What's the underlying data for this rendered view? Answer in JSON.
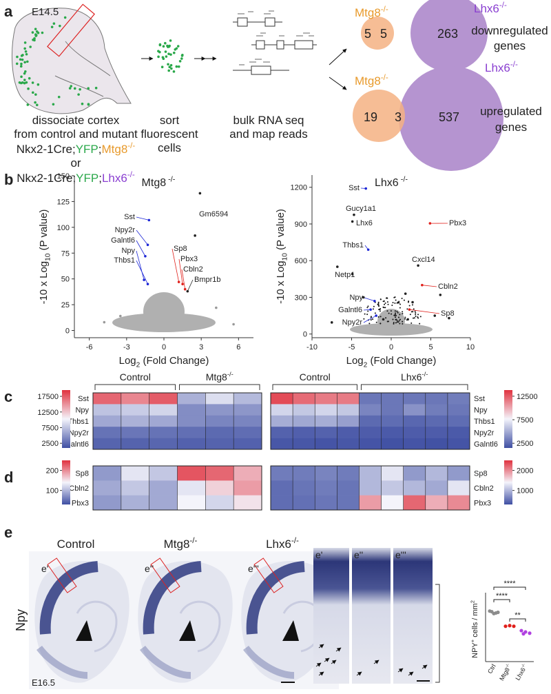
{
  "panel_labels": [
    "a",
    "b",
    "c",
    "d",
    "e"
  ],
  "panel_a": {
    "stage": "E14.5",
    "step1": [
      "dissociate cortex",
      "from control and mutant"
    ],
    "genotype1": [
      "Nkx2-1Cre;",
      "YFP",
      ";",
      "Mtg8",
      "-/-"
    ],
    "or": "or",
    "genotype2": [
      "Nkx2-1Cre;",
      "YFP",
      ";",
      "Lhx6",
      "-/-"
    ],
    "step2": [
      "sort",
      "fluorescent",
      "cells"
    ],
    "step3": [
      "bulk RNA seq",
      "and map reads"
    ],
    "venns": [
      {
        "left": "Mtg8",
        "left_sup": "-/-",
        "right": "Lhx6",
        "right_sup": "-/-",
        "only_left": 5,
        "overlap": 5,
        "only_right": 263,
        "caption": [
          "downregulated",
          "genes"
        ]
      },
      {
        "left": "Mtg8",
        "left_sup": "-/-",
        "right": "Lhx6",
        "right_sup": "-/-",
        "only_left": 19,
        "overlap": 3,
        "only_right": 537,
        "caption": [
          "upregulated",
          "genes"
        ]
      }
    ]
  },
  "panel_e": {
    "columns": [
      {
        "name": "Control"
      },
      {
        "name": "Mtg8",
        "sup": "-/-"
      },
      {
        "name": "Lhx6",
        "sup": "-/-"
      }
    ],
    "inset_labels": [
      "e'",
      "e''",
      "e'''"
    ],
    "zoom_labels": [
      "e'",
      "e''",
      "e'''"
    ],
    "marker": "Npy",
    "stage": "E16.5"
  },
  "chart_data": [
    {
      "type": "volcano",
      "title": "Mtg8",
      "title_sup": " -/-",
      "x_label": [
        "Log",
        "2",
        " (Fold Change)"
      ],
      "y_label": [
        "-10 x Log",
        "10",
        " (P value)"
      ],
      "xlim": [
        -7.2,
        7.2
      ],
      "xticks": [
        -6,
        -3,
        0,
        3,
        6
      ],
      "ylim": [
        -7,
        150
      ],
      "yticks": [
        0,
        25,
        50,
        75,
        100,
        125,
        150
      ],
      "x": [
        2.9,
        2.5,
        -1.2,
        -1.3,
        -1.5,
        -1.6,
        -1.3,
        1.2,
        1.5,
        1.7,
        1.9,
        -4.8,
        5.6,
        4.2,
        -3.5
      ],
      "values": [
        133,
        92,
        107,
        83,
        72,
        49,
        45,
        47,
        45,
        40,
        38,
        8,
        6,
        22,
        14
      ],
      "point_labels": [
        null,
        "Gm6594",
        "Sst",
        "Npy2r",
        "Galntl6",
        "Npy",
        "Thbs1",
        "Sp8",
        "Pbx3",
        "Cbln2",
        "Bmpr1b",
        null,
        null,
        null,
        null
      ],
      "point_colors": [
        "#222222",
        "#222222",
        "#1d27d6",
        "#1d27d6",
        "#1d27d6",
        "#1d27d6",
        "#1d27d6",
        "#e0201b",
        "#e0201b",
        "#e0201b",
        "#222222",
        "#999999",
        "#999999",
        "#999999",
        "#999999"
      ]
    },
    {
      "type": "volcano",
      "title": "Lhx6",
      "title_sup": " -/-",
      "x_label": [
        "Log",
        "2",
        " (Fold Change)"
      ],
      "y_label": [
        "-10 x Log",
        "10",
        " (P value)"
      ],
      "xlim": [
        -10,
        10
      ],
      "xticks": [
        -10,
        -5,
        0,
        5,
        10
      ],
      "ylim": [
        -30,
        1300
      ],
      "yticks": [
        0,
        300,
        600,
        900,
        1200
      ],
      "x": [
        -3.2,
        -4.7,
        -4.9,
        4.9,
        -2.9,
        3.4,
        -4.9,
        3.9,
        -2.1,
        2.3,
        -2.6,
        -1.9,
        -6.8,
        7.3,
        6.2,
        5.5,
        -7.5,
        -3.5,
        1.8,
        2.7,
        -1.0,
        2.1
      ],
      "values": [
        1190,
        975,
        920,
        905,
        690,
        560,
        490,
        400,
        270,
        200,
        200,
        150,
        550,
        130,
        320,
        150,
        95,
        300,
        330,
        260,
        120,
        120
      ],
      "point_labels": [
        "Sst",
        "Gucy1a1",
        "Lhx6",
        "Pbx3",
        "Thbs1",
        "Cxcl14",
        "Netp1",
        "Cbln2",
        "Npy",
        "Sp8",
        "Galntl6",
        "Npy2r",
        null,
        null,
        null,
        null,
        null,
        null,
        null,
        null,
        null,
        null
      ],
      "point_colors": [
        "#1d27d6",
        "#222222",
        "#222222",
        "#e0201b",
        "#1d27d6",
        "#222222",
        "#222222",
        "#e0201b",
        "#1d27d6",
        "#e0201b",
        "#1d27d6",
        "#1d27d6",
        "#222222",
        "#222222",
        "#222222",
        "#222222",
        "#222222",
        "#222222",
        "#222222",
        "#222222",
        "#222222",
        "#222222"
      ]
    },
    {
      "type": "heatmap",
      "rows": [
        "Sst",
        "Npy",
        "Thbs1",
        "Npy2r",
        "Galntl6"
      ],
      "colormap": [
        "#3f4fa3",
        "#f4f4fb",
        "#e0323f"
      ],
      "zlim": [
        1000,
        19500
      ],
      "zticks": [
        2500,
        7500,
        12500,
        17500
      ],
      "groups": [
        {
          "name": "Control",
          "values": [
            [
              17000,
              15500,
              17500
            ],
            [
              7500,
              8000,
              8500
            ],
            [
              6000,
              6500,
              6000
            ],
            [
              3000,
              3200,
              3000
            ],
            [
              2200,
              2100,
              2300
            ]
          ]
        },
        {
          "name": "Mtg8",
          "sup": "-/-",
          "values": [
            [
              6500,
              9000,
              7000
            ],
            [
              4500,
              5000,
              5000
            ],
            [
              4500,
              4000,
              4000
            ],
            [
              2800,
              2500,
              2700
            ],
            [
              2000,
              2100,
              2000
            ]
          ]
        }
      ]
    },
    {
      "type": "heatmap",
      "rows": [
        "Sst",
        "Npy",
        "Thbs1",
        "Npy2r",
        "Galntl6"
      ],
      "colormap": [
        "#3f4fa3",
        "#f4f4fb",
        "#e0323f"
      ],
      "zlim": [
        1500,
        13800
      ],
      "zticks": [
        2500,
        7500,
        12500
      ],
      "groups": [
        {
          "name": "Control",
          "values": [
            [
              13000,
              12000,
              11500,
              11500
            ],
            [
              6500,
              6000,
              6500,
              6000
            ],
            [
              5000,
              4800,
              5000,
              4500
            ],
            [
              2200,
              2100,
              2200,
              2000
            ],
            [
              1800,
              1800,
              1700,
              1800
            ]
          ]
        },
        {
          "name": "Lhx6",
          "sup": "-/-",
          "values": [
            [
              3000,
              3000,
              3000,
              3000,
              3200
            ],
            [
              3500,
              3000,
              4000,
              3200,
              3000
            ],
            [
              2500,
              2600,
              2400,
              2500,
              2600
            ],
            [
              2000,
              1900,
              2000,
              2000,
              1900
            ],
            [
              1700,
              1600,
              1700,
              1600,
              1700
            ]
          ]
        }
      ]
    },
    {
      "type": "heatmap",
      "rows": [
        "Sp8",
        "Cbln2",
        "Pbx3"
      ],
      "colormap": [
        "#3f4fa3",
        "#f4f4fb",
        "#e0323f"
      ],
      "zlim": [
        30,
        250
      ],
      "zticks": [
        100,
        200
      ],
      "values": [
        [
          80,
          130,
          110,
          230,
          220,
          180
        ],
        [
          90,
          110,
          90,
          130,
          160,
          190
        ],
        [
          80,
          95,
          90,
          140,
          120,
          150
        ]
      ]
    },
    {
      "type": "heatmap",
      "rows": [
        "Sp8",
        "Cbln2",
        "Pbx3"
      ],
      "colormap": [
        "#3f4fa3",
        "#f4f4fb",
        "#e0323f"
      ],
      "zlim": [
        300,
        2500
      ],
      "zticks": [
        1000,
        2000
      ],
      "values": [
        [
          600,
          600,
          650,
          600,
          1000,
          1300,
          800,
          1000,
          800
        ],
        [
          500,
          550,
          600,
          550,
          1000,
          1100,
          1000,
          900,
          1300
        ],
        [
          500,
          520,
          560,
          550,
          1900,
          1400,
          2200,
          1800,
          2000
        ]
      ]
    },
    {
      "type": "dot",
      "y_label": [
        "NPY",
        "+",
        " cells / mm",
        "2"
      ],
      "ylim": [
        0,
        120
      ],
      "series": [
        {
          "name": "Ctrl",
          "color": "#8c8c8c",
          "values": [
            80,
            78,
            76,
            79,
            77
          ]
        },
        {
          "name": "Mtg8",
          "sup": "-/-",
          "color": "#e0201b",
          "values": [
            56,
            56,
            57
          ]
        },
        {
          "name": "Lhx6",
          "sup": "-/-",
          "color": "#b040e0",
          "values": [
            49,
            45,
            47,
            44
          ]
        }
      ],
      "significance": [
        {
          "from": "Ctrl",
          "to": "Lhx6",
          "label": "****"
        },
        {
          "from": "Ctrl",
          "to": "Mtg8",
          "label": "****"
        },
        {
          "from": "Mtg8",
          "to": "Lhx6",
          "label": "**"
        }
      ]
    }
  ]
}
